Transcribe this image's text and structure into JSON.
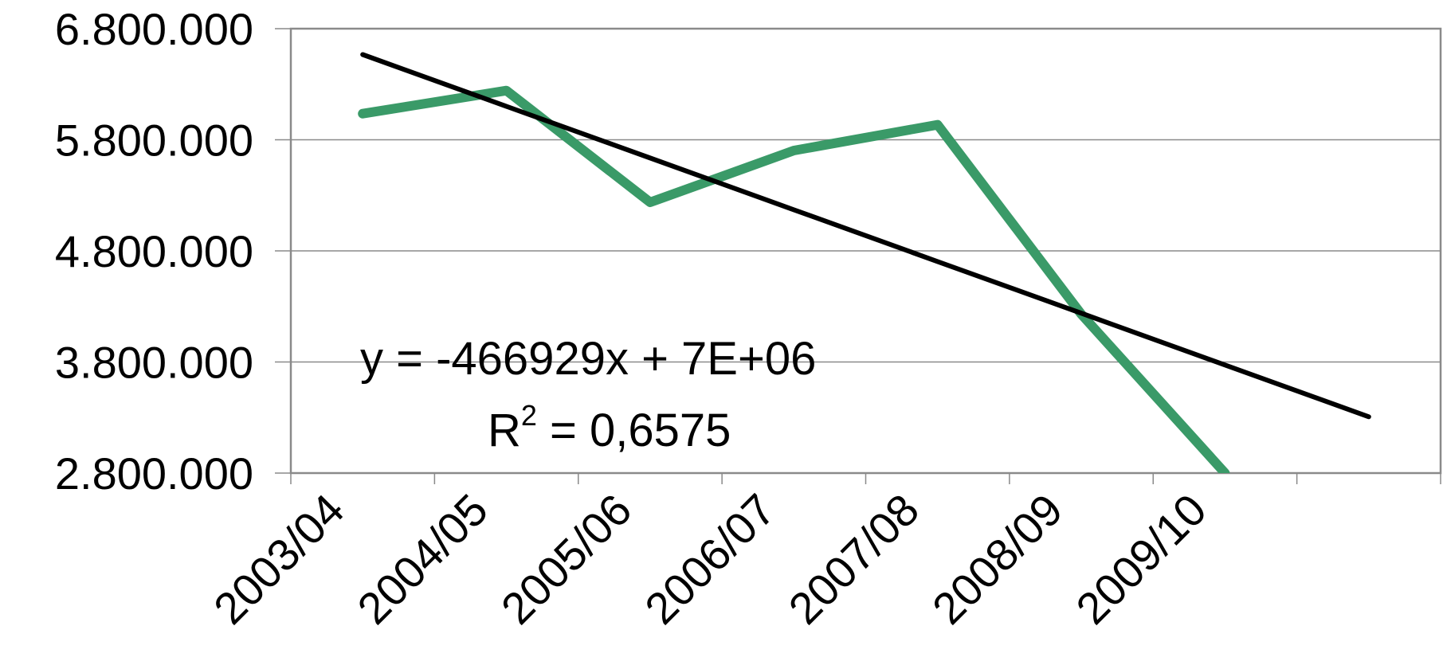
{
  "chart_data": {
    "type": "line",
    "categories": [
      "2003/04",
      "2004/05",
      "2005/06",
      "2006/07",
      "2007/08",
      "2008/09",
      "2009/10",
      null
    ],
    "series": [
      {
        "color": "#3a9a68",
        "values": [
          6035000,
          6243000,
          5237000,
          5703000,
          5935000,
          4230000,
          2800000,
          null
        ]
      },
      {
        "color": "#000000",
        "values": [
          6567000,
          6101000,
          5636000,
          5170000,
          4704000,
          4239000,
          3773000,
          3307000
        ]
      }
    ],
    "ylim": [
      2800000,
      6800000
    ],
    "yticks": [
      {
        "value": 2800000,
        "label": "2.800.000"
      },
      {
        "value": 3800000,
        "label": "3.800.000"
      },
      {
        "value": 4800000,
        "label": "4.800.000"
      },
      {
        "value": 5800000,
        "label": "5.800.000"
      },
      {
        "value": 6800000,
        "label": "6.800.000"
      }
    ],
    "grid": true,
    "annotations": {
      "equation": "y = -466929x + 7E+06",
      "r_base": "R",
      "r_sup": "2",
      "r_rest": " = 0,6575"
    }
  }
}
